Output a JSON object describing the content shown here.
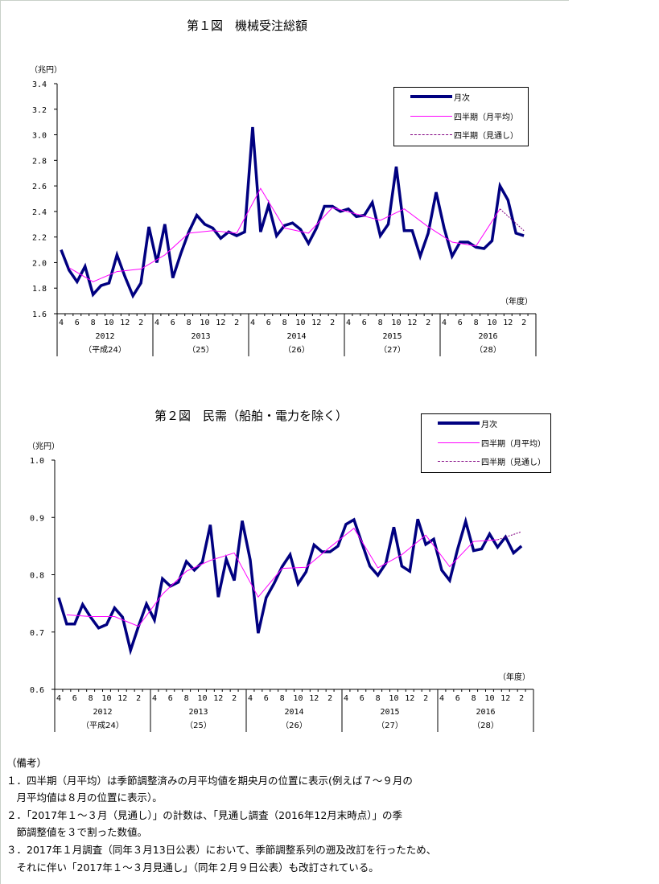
{
  "chart_data": [
    {
      "type": "line",
      "title": "第１図　機械受注総額",
      "ylabel": "（兆円）",
      "xlabel": "（年度）",
      "ylim": [
        1.6,
        3.4
      ],
      "ystep": 0.2,
      "yticks": [
        "1.6",
        "1.8",
        "2.0",
        "2.2",
        "2.4",
        "2.6",
        "2.8",
        "3.0",
        "3.2",
        "3.4"
      ],
      "month_tick_labels": [
        "4",
        "6",
        "8",
        "10",
        "12",
        "2"
      ],
      "fiscal_years": [
        {
          "year": "2012",
          "era": "（平成24）"
        },
        {
          "year": "2013",
          "era": "（25）"
        },
        {
          "year": "2014",
          "era": "（26）"
        },
        {
          "year": "2015",
          "era": "（27）"
        },
        {
          "year": "2016",
          "era": "（28）"
        }
      ],
      "x_start": "2012-04",
      "legend": [
        "月次",
        "四半期（月平均）",
        "四半期（見通し）"
      ],
      "legend_position": "top-right",
      "series": [
        {
          "name": "月次",
          "color": "#000080",
          "values": [
            2.1,
            1.94,
            1.85,
            1.97,
            1.75,
            1.82,
            1.84,
            2.06,
            1.89,
            1.74,
            1.84,
            2.28,
            2.0,
            2.3,
            1.88,
            2.07,
            2.24,
            2.37,
            2.3,
            2.27,
            2.19,
            2.24,
            2.21,
            2.24,
            3.06,
            2.24,
            2.45,
            2.21,
            2.29,
            2.31,
            2.26,
            2.15,
            2.27,
            2.44,
            2.44,
            2.4,
            2.42,
            2.36,
            2.37,
            2.47,
            2.21,
            2.3,
            2.75,
            2.25,
            2.25,
            2.05,
            2.23,
            2.55,
            2.27,
            2.05,
            2.16,
            2.16,
            2.12,
            2.11,
            2.17,
            2.6,
            2.49,
            2.23,
            2.21
          ]
        },
        {
          "name": "四半期（月平均）",
          "color": "#ff00ff",
          "month_index": [
            1,
            4,
            7,
            10,
            13,
            16,
            19,
            22,
            25,
            28,
            31,
            34,
            37,
            40,
            43,
            46,
            49,
            52,
            55
          ],
          "values": [
            1.96,
            1.85,
            1.93,
            1.95,
            2.06,
            2.23,
            2.25,
            2.23,
            2.58,
            2.27,
            2.23,
            2.43,
            2.38,
            2.33,
            2.42,
            2.28,
            2.16,
            2.13,
            2.42
          ]
        },
        {
          "name": "四半期（見通し）",
          "color": "#800080",
          "month_index": [
            55,
            58
          ],
          "values": [
            2.42,
            2.25
          ]
        }
      ]
    },
    {
      "type": "line",
      "title": "第２図　民需（船舶・電力を除く）",
      "ylabel": "（兆円）",
      "xlabel": "（年度）",
      "ylim": [
        0.6,
        1.0
      ],
      "ystep": 0.1,
      "yticks": [
        "0.6",
        "0.7",
        "0.8",
        "0.9",
        "1.0"
      ],
      "month_tick_labels": [
        "4",
        "6",
        "8",
        "10",
        "12",
        "2"
      ],
      "fiscal_years": [
        {
          "year": "2012",
          "era": "（平成24）"
        },
        {
          "year": "2013",
          "era": "（25）"
        },
        {
          "year": "2014",
          "era": "（26）"
        },
        {
          "year": "2015",
          "era": "（27）"
        },
        {
          "year": "2016",
          "era": "（28）"
        }
      ],
      "x_start": "2012-04",
      "legend": [
        "月次",
        "四半期（月平均）",
        "四半期（見通し）"
      ],
      "legend_position": "top-right",
      "series": [
        {
          "name": "月次",
          "color": "#000080",
          "values": [
            0.76,
            0.714,
            0.714,
            0.748,
            0.726,
            0.707,
            0.713,
            0.742,
            0.726,
            0.668,
            0.71,
            0.749,
            0.721,
            0.793,
            0.78,
            0.787,
            0.823,
            0.808,
            0.822,
            0.887,
            0.761,
            0.827,
            0.79,
            0.894,
            0.826,
            0.698,
            0.76,
            0.785,
            0.814,
            0.835,
            0.784,
            0.805,
            0.852,
            0.84,
            0.84,
            0.85,
            0.888,
            0.896,
            0.855,
            0.815,
            0.799,
            0.82,
            0.883,
            0.815,
            0.806,
            0.897,
            0.853,
            0.862,
            0.808,
            0.79,
            0.845,
            0.893,
            0.842,
            0.845,
            0.871,
            0.848,
            0.866,
            0.838,
            0.85
          ]
        },
        {
          "name": "四半期（月平均）",
          "color": "#ff00ff",
          "month_index": [
            1,
            4,
            7,
            10,
            13,
            16,
            19,
            22,
            25,
            28,
            31,
            34,
            37,
            40,
            43,
            46,
            49,
            52,
            55
          ],
          "values": [
            0.73,
            0.727,
            0.727,
            0.71,
            0.766,
            0.806,
            0.825,
            0.838,
            0.761,
            0.811,
            0.813,
            0.848,
            0.881,
            0.812,
            0.835,
            0.869,
            0.814,
            0.858,
            0.861
          ]
        },
        {
          "name": "四半期（見通し）",
          "color": "#800080",
          "month_index": [
            55,
            58
          ],
          "values": [
            0.861,
            0.875
          ]
        }
      ]
    }
  ],
  "notes": {
    "heading": "（備考）",
    "lines": [
      "１．四半期（月平均）は季節調整済みの月平均値を期央月の位置に表示(例えば７～９月の",
      "　月平均値は８月の位置に表示）。",
      "２．「2017年１～３月（見通し）」の計数は、「見通し調査（2016年12月末時点）」の季",
      "　節調整値を３で割った数値。",
      "３．2017年１月調査（同年３月13日公表）において、季節調整系列の遡及改訂を行ったため、",
      "　それに伴い「2017年１～３月見通し」（同年２月９日公表）も改訂されている。"
    ]
  }
}
